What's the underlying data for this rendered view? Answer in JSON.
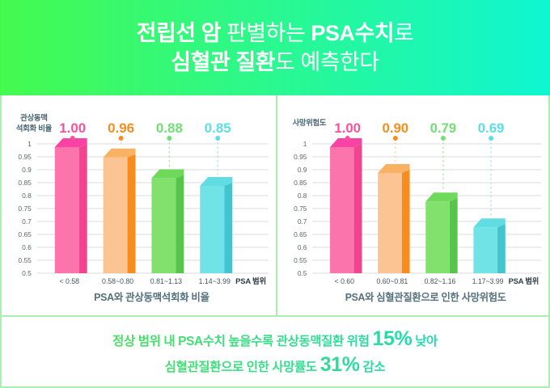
{
  "header": {
    "line1_segments": [
      {
        "text": "전립선 암",
        "bold": true
      },
      {
        "text": " 판별하는 ",
        "bold": false
      },
      {
        "text": "PSA수치",
        "bold": true
      },
      {
        "text": "로",
        "bold": false
      }
    ],
    "line2_segments": [
      {
        "text": "심혈관 질환",
        "bold": true
      },
      {
        "text": "도 예측한다",
        "bold": false
      }
    ],
    "gradient_left": "#45FA4F",
    "gradient_right": "#0FF6D1",
    "text_color": "#FFFFFF"
  },
  "chart_data": [
    {
      "type": "bar",
      "title": "PSA와 관상동맥석회화 비율",
      "ylabel": "관상동맥 석회화 비율",
      "ylabel_lines": [
        "관상동맥",
        "석회화 비율"
      ],
      "xlabel": "PSA 범위",
      "categories": [
        "< 0.58",
        "0.58~0.80",
        "0.81~1.13",
        "1.14~3.99"
      ],
      "values": [
        1.0,
        0.96,
        0.88,
        0.85
      ],
      "value_labels": [
        "1.00",
        "0.96",
        "0.88",
        "0.85"
      ],
      "ylim": [
        0.5,
        1.0
      ],
      "ytick_step": 0.05,
      "grid": true,
      "legend": "none"
    },
    {
      "type": "bar",
      "title": "PSA와 심혈관질환으로 인한 사망위험도",
      "ylabel": "사망위험도",
      "ylabel_lines": [
        "사망위험도"
      ],
      "xlabel": "PSA 범위",
      "categories": [
        "< 0.60",
        "0.60~0.81",
        "0.82~1.16",
        "1.17~3.99"
      ],
      "values": [
        1.0,
        0.9,
        0.79,
        0.69
      ],
      "value_labels": [
        "1.00",
        "0.90",
        "0.79",
        "0.69"
      ],
      "ylim": [
        0.5,
        1.0
      ],
      "ytick_step": 0.05,
      "grid": true,
      "legend": "none"
    }
  ],
  "style": {
    "bar_palettes": [
      {
        "name": "pink",
        "front": "#FB74AC",
        "side": "#F0448E",
        "top": "#F843A4",
        "label": "#F9509E",
        "dash": "#F6A9CD"
      },
      {
        "name": "orange",
        "front": "#FCC493",
        "side": "#F68D1E",
        "top": "#F9B164",
        "label": "#F68E1D",
        "dash": "#FAD2A5"
      },
      {
        "name": "green",
        "front": "#82E06D",
        "side": "#57C44B",
        "top": "#6ED95A",
        "label": "#6FE071",
        "dash": "#A5EAA5"
      },
      {
        "name": "cyan",
        "front": "#6FE3E6",
        "side": "#43C4CE",
        "top": "#60DCE2",
        "label": "#58DFE8",
        "dash": "#9FEAEF"
      }
    ],
    "grid_color": "#DBDBDB",
    "tick_color": "#5A6670",
    "category_color": "#46525E",
    "psa_label_color": "#2E3D48",
    "title_color": "#53707B",
    "ylabel_color": "#4A6772",
    "frame_border_color": "#A9EFB0"
  },
  "footer": {
    "line1_segments": [
      {
        "text": "정상 범위 내 PSA수치 높을수록 관상동맥질환 위험 ",
        "big": false
      },
      {
        "text": "15%",
        "big": true
      },
      {
        "text": " 낮아",
        "big": false
      }
    ],
    "line2_segments": [
      {
        "text": "심혈관질환으로 인한 사망률도 ",
        "big": false
      },
      {
        "text": "31%",
        "big": true
      },
      {
        "text": " 감소",
        "big": false
      }
    ],
    "gradient_left": "#4ADF5C",
    "gradient_right": "#1FDABB"
  }
}
